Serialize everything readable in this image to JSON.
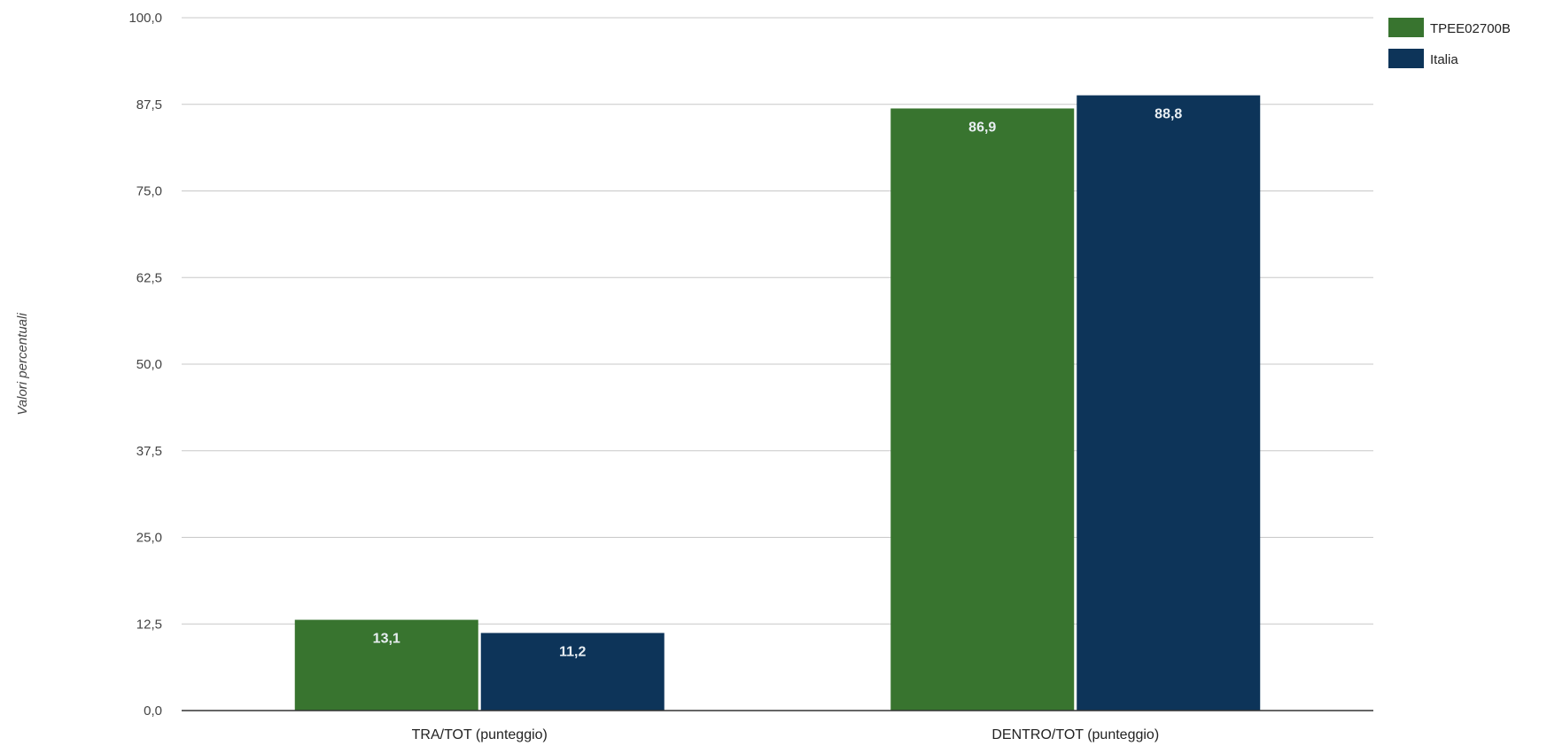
{
  "chart_data": {
    "type": "bar",
    "categories": [
      "TRA/TOT (punteggio)",
      "DENTRO/TOT (punteggio)"
    ],
    "series": [
      {
        "name": "TPEE02700B",
        "color": "#38742f",
        "values": [
          13.1,
          86.9
        ],
        "labels": [
          "13,1",
          "86,9"
        ]
      },
      {
        "name": "Italia",
        "color": "#0d3459",
        "values": [
          11.2,
          88.8
        ],
        "labels": [
          "11,2",
          "88,8"
        ]
      }
    ],
    "ylabel": "Valori percentuali",
    "ylim": [
      0,
      100
    ],
    "yticks": [
      0,
      12.5,
      25,
      37.5,
      50,
      62.5,
      75,
      87.5,
      100
    ],
    "ytick_labels": [
      "0,0",
      "12,5",
      "25,0",
      "37,5",
      "50,0",
      "62,5",
      "75,0",
      "87,5",
      "100,0"
    ],
    "grid": true,
    "legend": "top-right"
  }
}
